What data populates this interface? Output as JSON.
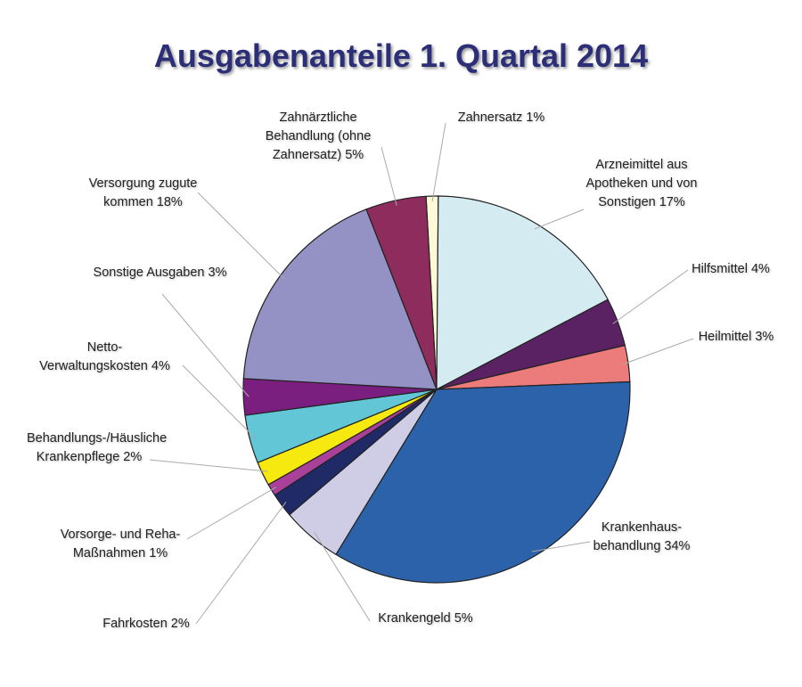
{
  "chart_data": {
    "type": "pie",
    "title": "Ausgabenanteile 1. Quartal 2014",
    "categories": [
      "Zahnersatz",
      "Arzneimittel aus Apotheken und von Sonstigen",
      "Hilfsmittel",
      "Heilmittel",
      "Krankenhaus-behandlung",
      "Krankengeld",
      "Fahrkosten",
      "Vorsorge- und Reha-Maßnahmen",
      "Behandlungs-/Häusliche Krankenpflege",
      "Netto-Verwaltungskosten",
      "Sonstige Ausgaben",
      "Versorgung zugute kommen",
      "Zahnärztliche Behandlung (ohne Zahnersatz)"
    ],
    "values": [
      1,
      17,
      4,
      3,
      34,
      5,
      2,
      1,
      2,
      4,
      3,
      18,
      5
    ],
    "value_labels": [
      "1%",
      "17%",
      "4%",
      "3%",
      "34%",
      "5%",
      "2%",
      "1%",
      "2%",
      "4%",
      "3%",
      "18%",
      "5%"
    ],
    "colors": [
      "#fdf8d6",
      "#d4ebf2",
      "#5a2262",
      "#ec7b7b",
      "#2b62a9",
      "#cfcce6",
      "#1f2a66",
      "#a9419a",
      "#f5e90f",
      "#62c6d6",
      "#7a1f80",
      "#9491c4",
      "#8e2c5d"
    ]
  }
}
